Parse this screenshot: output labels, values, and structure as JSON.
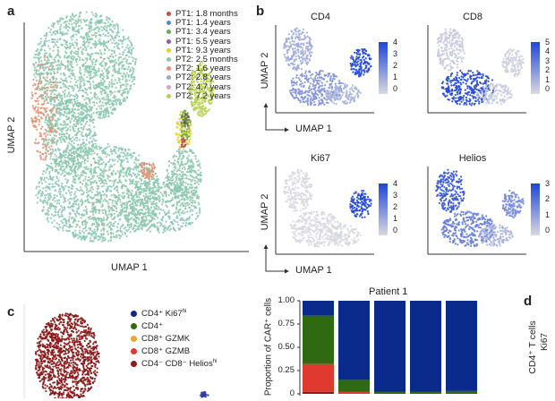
{
  "panel_a": {
    "label": "a",
    "xlabel": "UMAP 1",
    "ylabel": "UMAP 2",
    "legend": [
      {
        "label": "PT1: 1.8 months",
        "color": "#c0504d"
      },
      {
        "label": "PT1: 1.4 years",
        "color": "#4f8fc0"
      },
      {
        "label": "PT1: 3.4 years",
        "color": "#6aaa50"
      },
      {
        "label": "PT1: 5.5 years",
        "color": "#8e5ca8"
      },
      {
        "label": "PT1: 9.3 years",
        "color": "#e8d030"
      },
      {
        "label": "PT2: 2.5 months",
        "color": "#8cc8b0"
      },
      {
        "label": "PT2: 1.6 years",
        "color": "#e09070"
      },
      {
        "label": "PT2: 2.8 years",
        "color": "#9aa8c0"
      },
      {
        "label": "PT2: 4.7 years",
        "color": "#d8a0d0"
      },
      {
        "label": "PT2: 7.2 years",
        "color": "#b8d050"
      }
    ]
  },
  "panel_b": {
    "label": "b",
    "xlabel": "UMAP 1",
    "ylabel": "UMAP 2",
    "colormap": [
      "#d9d9e0",
      "#1f45d8"
    ],
    "markers": [
      {
        "title": "CD4",
        "ticks": [
          "4",
          "3",
          "2",
          "1",
          "0"
        ]
      },
      {
        "title": "CD8",
        "ticks": [
          "5",
          "4",
          "3",
          "2",
          "1",
          "0"
        ]
      },
      {
        "title": "Ki67",
        "ticks": [
          "4",
          "3",
          "2",
          "1",
          "0"
        ]
      },
      {
        "title": "Helios",
        "ticks": [
          "3",
          "2",
          "1",
          "0"
        ]
      }
    ]
  },
  "panel_c": {
    "label": "c",
    "legend": [
      {
        "main": "CD4⁺ Ki67",
        "sup": "hi",
        "color": "#0a2a8c"
      },
      {
        "main": "CD4⁺",
        "sup": "",
        "color": "#2f6a12"
      },
      {
        "main": "CD8⁺ GZMK",
        "sup": "",
        "color": "#e8a838"
      },
      {
        "main": "CD8⁺ GZMB",
        "sup": "",
        "color": "#e03a30"
      },
      {
        "main": "CD4⁻ CD8⁻ Helios",
        "sup": "hi",
        "color": "#8b1a1a"
      }
    ]
  },
  "panel_d": {
    "label": "d",
    "ylabel": "CD4⁺ T cells",
    "partial_label": "Ki67"
  },
  "chart_data": {
    "type": "bar",
    "stacked": true,
    "title": "Patient 1",
    "ylabel": "Proportion of CAR⁺ cells",
    "ylim": [
      0,
      1
    ],
    "yticks": [
      "0",
      "0.25",
      "0.50",
      "0.75",
      "1.00"
    ],
    "categories": [
      "",
      "",
      "",
      "",
      ""
    ],
    "series": [
      {
        "name": "CD4⁻ CD8⁻ Helioshi",
        "color": "#8b1a1a",
        "values": [
          0.02,
          0.0,
          0.0,
          0.0,
          0.0
        ]
      },
      {
        "name": "CD8⁺ GZMB",
        "color": "#e03a30",
        "values": [
          0.3,
          0.02,
          0.0,
          0.0,
          0.0
        ]
      },
      {
        "name": "CD8⁺ GZMK",
        "color": "#e8a838",
        "values": [
          0.0,
          0.0,
          0.0,
          0.0,
          0.0
        ]
      },
      {
        "name": "CD4⁺",
        "color": "#2f6a12",
        "values": [
          0.52,
          0.13,
          0.02,
          0.02,
          0.03
        ]
      },
      {
        "name": "CD4⁺ Ki67hi",
        "color": "#0a2a8c",
        "values": [
          0.16,
          0.85,
          0.98,
          0.98,
          0.97
        ]
      }
    ]
  }
}
